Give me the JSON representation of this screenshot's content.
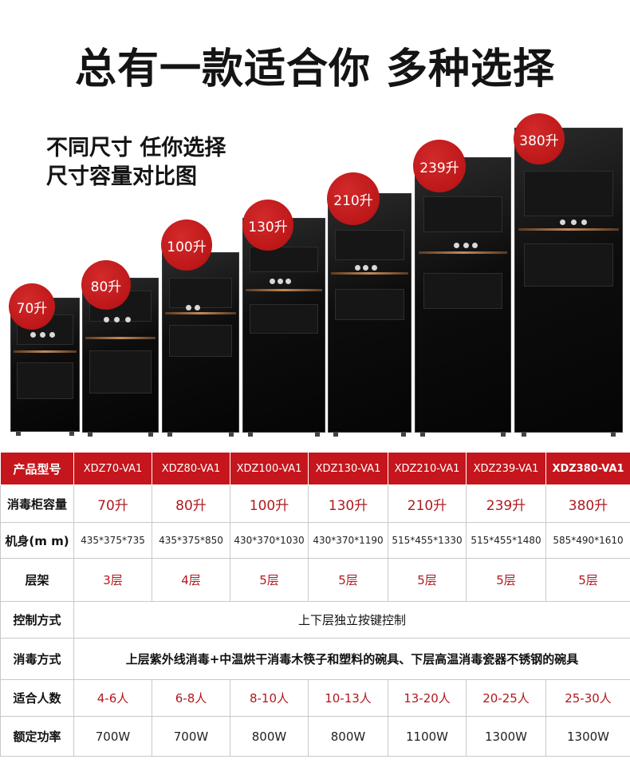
{
  "headline": "总有一款适合你 多种选择",
  "subtitle_lines": [
    "不同尺寸 任你选择",
    "尺寸容量对比图"
  ],
  "capacity_badges": [
    "70升",
    "80升",
    "100升",
    "130升",
    "210升",
    "239升",
    "380升"
  ],
  "colors": {
    "accent_red": "#c4161c",
    "badge_red": "#c01418",
    "value_red": "#b0191e"
  },
  "table": {
    "model_label": "产品型号",
    "models": [
      "XDZ70-VA1",
      "XDZ80-VA1",
      "XDZ100-VA1",
      "XDZ130-VA1",
      "XDZ210-VA1",
      "XDZ239-VA1",
      "XDZ380-VA1"
    ],
    "capacity_label": "消毒柜容量",
    "capacities": [
      "70升",
      "80升",
      "100升",
      "130升",
      "210升",
      "239升",
      "380升"
    ],
    "dimension_label": "机身(m m)",
    "dimensions": [
      "435*375*735",
      "435*375*850",
      "430*370*1030",
      "430*370*1190",
      "515*455*1330",
      "515*455*1480",
      "585*490*1610"
    ],
    "shelf_label": "层架",
    "shelves": [
      "3层",
      "4层",
      "5层",
      "5层",
      "5层",
      "5层",
      "5层"
    ],
    "control_label": "控制方式",
    "control_value": "上下层独立按键控制",
    "disinfect_label": "消毒方式",
    "disinfect_value": "上层紫外线消毒+中温烘干消毒木筷子和塑料的碗具、下层高温消毒瓷器不锈钢的碗具",
    "people_label": "适合人数",
    "people": [
      "4-6人",
      "6-8人",
      "8-10人",
      "10-13人",
      "13-20人",
      "20-25人",
      "25-30人"
    ],
    "power_label": "额定功率",
    "powers": [
      "700W",
      "700W",
      "800W",
      "800W",
      "1100W",
      "1300W",
      "1300W"
    ]
  }
}
